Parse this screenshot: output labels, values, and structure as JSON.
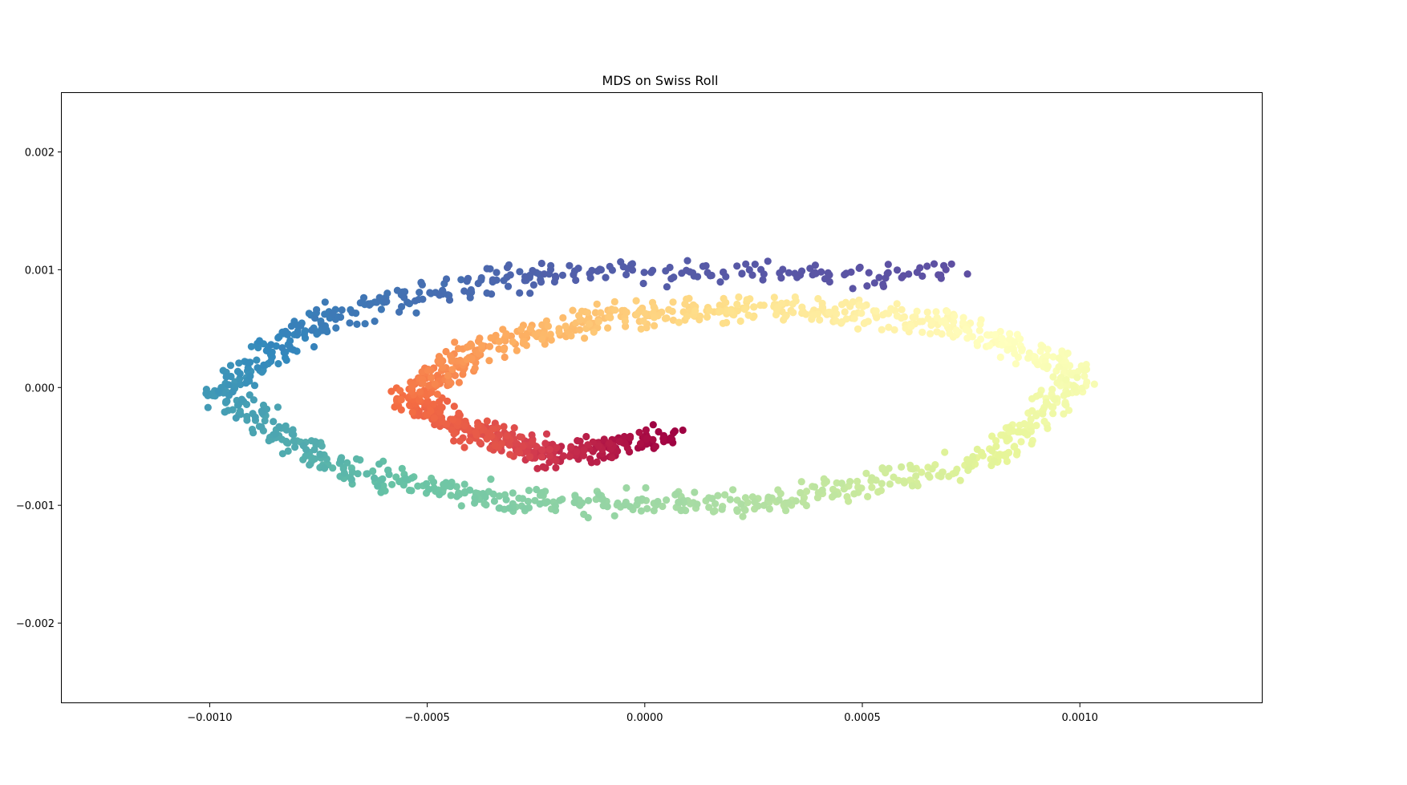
{
  "chart_data": {
    "type": "scatter",
    "title": "MDS on Swiss Roll",
    "xlabel": "",
    "ylabel": "",
    "xlim": [
      -0.00134,
      0.00142
    ],
    "ylim": [
      -0.00268,
      0.0025
    ],
    "xticks": [
      -0.001,
      -0.0005,
      0.0,
      0.0005,
      0.001
    ],
    "xtick_labels": [
      "−0.0010",
      "−0.0005",
      "0.0000",
      "0.0005",
      "0.0010"
    ],
    "yticks": [
      -0.002,
      -0.001,
      0.0,
      0.001,
      0.002
    ],
    "ytick_labels": [
      "−0.002",
      "−0.001",
      "0.000",
      "0.001",
      "0.002"
    ],
    "grid": false,
    "colormap": "Spectral",
    "colormap_stops": [
      "#9e0142",
      "#d53e4f",
      "#f46d43",
      "#fdae61",
      "#fee08b",
      "#ffffbf",
      "#e6f598",
      "#abdda4",
      "#66c2a5",
      "#3288bd",
      "#5e4fa2"
    ],
    "series": [
      {
        "spiral_anchor_points": [
          {
            "x": 5e-05,
            "y": -0.0004,
            "t": 0.0
          },
          {
            "x": -0.0002,
            "y": -0.00058,
            "t": 0.07
          },
          {
            "x": -0.00038,
            "y": -0.0004,
            "t": 0.15
          },
          {
            "x": -0.00055,
            "y": -0.0001,
            "t": 0.2
          },
          {
            "x": -0.0004,
            "y": 0.0003,
            "t": 0.27
          },
          {
            "x": -0.0001,
            "y": 0.0006,
            "t": 0.35
          },
          {
            "x": 0.0003,
            "y": 0.00068,
            "t": 0.42
          },
          {
            "x": 0.0007,
            "y": 0.00055,
            "t": 0.48
          },
          {
            "x": 0.001,
            "y": 0.0001,
            "t": 0.53
          },
          {
            "x": 0.0008,
            "y": -0.0006,
            "t": 0.6
          },
          {
            "x": 0.0003,
            "y": -0.00098,
            "t": 0.68
          },
          {
            "x": -0.00025,
            "y": -0.00098,
            "t": 0.75
          },
          {
            "x": -0.0007,
            "y": -0.0007,
            "t": 0.82
          },
          {
            "x": -0.00098,
            "y": -5e-05,
            "t": 0.87
          },
          {
            "x": -0.00075,
            "y": 0.0006,
            "t": 0.92
          },
          {
            "x": -0.0002,
            "y": 0.001,
            "t": 0.97
          },
          {
            "x": 0.00072,
            "y": 0.00095,
            "t": 1.0
          }
        ]
      }
    ]
  }
}
